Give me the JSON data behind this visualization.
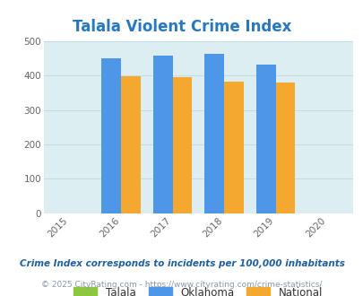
{
  "title": "Talala Violent Crime Index",
  "title_color": "#2878be",
  "years": [
    2016,
    2017,
    2018,
    2019
  ],
  "xlim": [
    2014.5,
    2020.5
  ],
  "xticks": [
    2015,
    2016,
    2017,
    2018,
    2019,
    2020
  ],
  "ylim": [
    0,
    500
  ],
  "yticks": [
    0,
    100,
    200,
    300,
    400,
    500
  ],
  "talala": [
    0,
    0,
    0,
    0
  ],
  "oklahoma": [
    450,
    458,
    465,
    432
  ],
  "national": [
    398,
    395,
    382,
    381
  ],
  "colors": {
    "talala": "#8dc63f",
    "oklahoma": "#4d96e8",
    "national": "#f5a830"
  },
  "bar_width": 0.38,
  "fig_bg": "#ffffff",
  "plot_bg": "#ddeef2",
  "grid_color": "#c5dce2",
  "legend_labels": [
    "Talala",
    "Oklahoma",
    "National"
  ],
  "footnote1": "Crime Index corresponds to incidents per 100,000 inhabitants",
  "footnote2": "© 2025 CityRating.com - https://www.cityrating.com/crime-statistics/",
  "footnote1_color": "#2060a0",
  "footnote2_color": "#8899aa"
}
